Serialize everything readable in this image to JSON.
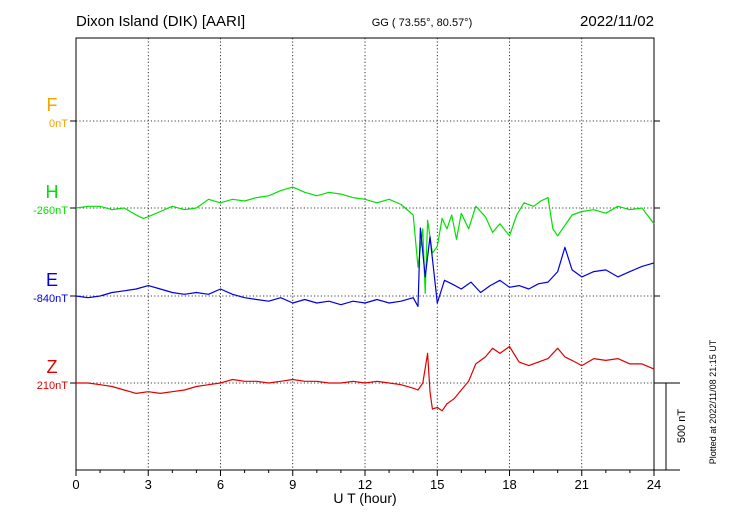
{
  "header": {
    "station": "Dixon Island (DIK)  [AARI]",
    "coords": "GG ( 73.55°,  80.57°)",
    "date": "2022/11/02"
  },
  "footer": {
    "plotted": "Plotted at 2022/11/08 21:15 UT"
  },
  "scale_bar": {
    "label": "500 nT",
    "value_nT": 500
  },
  "chart_data": {
    "type": "line",
    "title": "Dixon Island (DIK)  [AARI]",
    "xlabel": "U T (hour)",
    "xlim": [
      0,
      24
    ],
    "xticks": [
      "0",
      "3",
      "6",
      "9",
      "12",
      "15",
      "18",
      "21",
      "24"
    ],
    "grid": true,
    "series": [
      {
        "name": "F",
        "baseline": "0nT",
        "color": "#f4a300",
        "x": [],
        "y": []
      },
      {
        "name": "H",
        "baseline": "-260nT",
        "color": "#00e000",
        "x": [
          0,
          0.5,
          1,
          1.5,
          2,
          2.5,
          2.8,
          3,
          3.5,
          4,
          4.5,
          5,
          5.5,
          6,
          6.5,
          7,
          7.5,
          8,
          8.5,
          9,
          9.5,
          10,
          10.5,
          11,
          11.5,
          12,
          12.5,
          13,
          13.5,
          14,
          14.2,
          14.4,
          14.5,
          14.6,
          14.8,
          15,
          15.2,
          15.4,
          15.6,
          15.8,
          16,
          16.3,
          16.6,
          17,
          17.3,
          17.6,
          18,
          18.3,
          18.6,
          19,
          19.3,
          19.6,
          19.8,
          20,
          20.3,
          20.6,
          21,
          21.5,
          22,
          22.5,
          23,
          23.5,
          24
        ],
        "y": [
          -260,
          -250,
          -250,
          -270,
          -260,
          -300,
          -320,
          -310,
          -280,
          -250,
          -270,
          -260,
          -210,
          -230,
          -210,
          -220,
          -200,
          -190,
          -160,
          -140,
          -170,
          -190,
          -170,
          -180,
          -200,
          -210,
          -230,
          -210,
          -240,
          -300,
          -600,
          -380,
          -750,
          -330,
          -520,
          -480,
          -320,
          -380,
          -300,
          -440,
          -290,
          -380,
          -250,
          -310,
          -400,
          -350,
          -420,
          -300,
          -230,
          -250,
          -220,
          -200,
          -380,
          -420,
          -360,
          -300,
          -280,
          -270,
          -290,
          -250,
          -270,
          -260,
          -350
        ]
      },
      {
        "name": "E",
        "baseline": "-840nT",
        "color": "#0000e0",
        "x": [
          0,
          0.5,
          1,
          1.5,
          2,
          2.5,
          3,
          3.5,
          4,
          4.5,
          5,
          5.5,
          6,
          6.5,
          7,
          7.5,
          8,
          8.5,
          9,
          9.5,
          10,
          10.5,
          11,
          11.5,
          12,
          12.5,
          13,
          13.5,
          14,
          14.2,
          14.3,
          14.5,
          14.7,
          15,
          15.3,
          15.6,
          16,
          16.4,
          16.8,
          17.2,
          17.6,
          18,
          18.4,
          18.8,
          19.2,
          19.6,
          20,
          20.3,
          20.6,
          21,
          21.5,
          22,
          22.5,
          23,
          23.5,
          24
        ],
        "y": [
          -840,
          -850,
          -840,
          -820,
          -810,
          -800,
          -780,
          -800,
          -820,
          -830,
          -820,
          -830,
          -800,
          -830,
          -850,
          -860,
          -870,
          -850,
          -880,
          -860,
          -880,
          -870,
          -890,
          -870,
          -880,
          -860,
          -880,
          -870,
          -850,
          -900,
          -450,
          -730,
          -500,
          -880,
          -750,
          -770,
          -800,
          -760,
          -820,
          -780,
          -750,
          -790,
          -780,
          -800,
          -770,
          -760,
          -700,
          -560,
          -690,
          -730,
          -700,
          -690,
          -730,
          -700,
          -670,
          -650
        ]
      },
      {
        "name": "Z",
        "baseline": "210nT",
        "color": "#e00000",
        "x": [
          0,
          0.5,
          1,
          1.5,
          2,
          2.5,
          3,
          3.5,
          4,
          4.5,
          5,
          5.5,
          6,
          6.5,
          7,
          7.5,
          8,
          8.5,
          9,
          9.5,
          10,
          10.5,
          11,
          11.5,
          12,
          12.5,
          13,
          13.5,
          14,
          14.2,
          14.4,
          14.6,
          14.7,
          14.8,
          15,
          15.2,
          15.4,
          15.7,
          16,
          16.3,
          16.6,
          17,
          17.3,
          17.6,
          18,
          18.4,
          18.8,
          19.2,
          19.6,
          20,
          20.3,
          20.6,
          21,
          21.5,
          22,
          22.5,
          23,
          23.5,
          24
        ],
        "y": [
          210,
          210,
          200,
          190,
          170,
          150,
          160,
          150,
          160,
          170,
          190,
          200,
          210,
          230,
          220,
          220,
          210,
          220,
          230,
          220,
          220,
          210,
          210,
          220,
          210,
          220,
          210,
          200,
          180,
          170,
          210,
          380,
          160,
          60,
          70,
          50,
          90,
          120,
          170,
          220,
          320,
          360,
          410,
          380,
          420,
          330,
          310,
          330,
          350,
          410,
          360,
          340,
          310,
          350,
          340,
          350,
          320,
          320,
          290
        ]
      }
    ]
  }
}
